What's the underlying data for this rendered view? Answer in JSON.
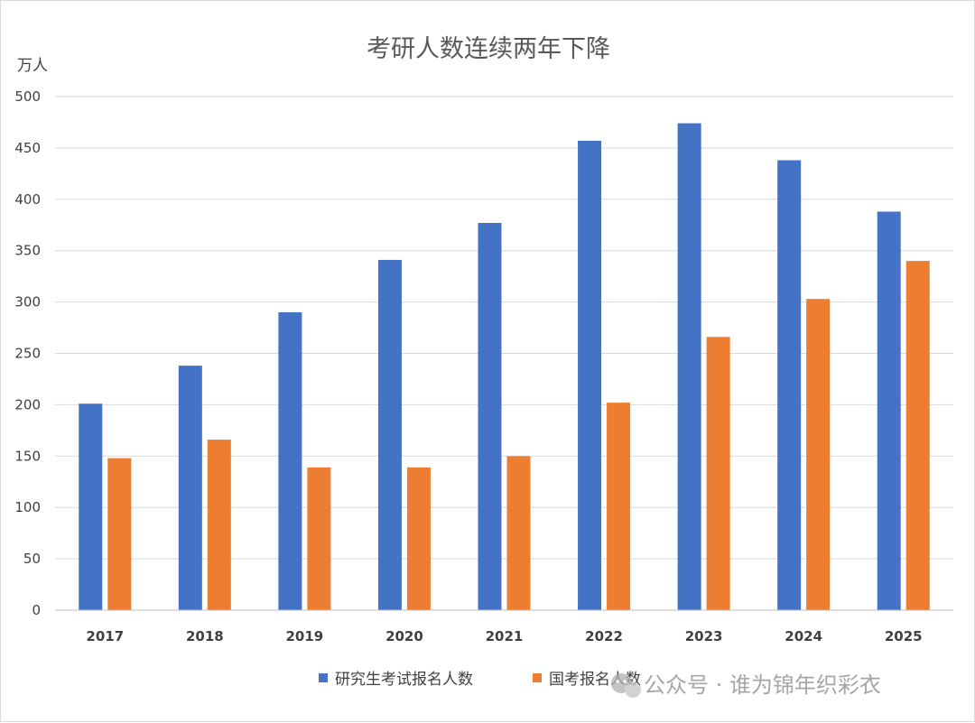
{
  "chart_data": {
    "type": "bar",
    "title": "考研人数连续两年下降",
    "unit": "万人",
    "categories": [
      "2017",
      "2018",
      "2019",
      "2020",
      "2021",
      "2022",
      "2023",
      "2024",
      "2025"
    ],
    "series": [
      {
        "name": "研究生考试报名人数",
        "color": "#4472c4",
        "values": [
          201,
          238,
          290,
          341,
          377,
          457,
          474,
          438,
          388
        ]
      },
      {
        "name": "国考报名人数",
        "color": "#ed7d31",
        "values": [
          148,
          166,
          139,
          139,
          150,
          202,
          266,
          303,
          340
        ]
      }
    ],
    "ylim": [
      0,
      500
    ],
    "yticks": [
      0,
      50,
      100,
      150,
      200,
      250,
      300,
      350,
      400,
      450,
      500
    ],
    "grid": true,
    "legend_position": "bottom"
  },
  "watermark": {
    "text": "公众号 · 谁为锦年织彩衣"
  }
}
